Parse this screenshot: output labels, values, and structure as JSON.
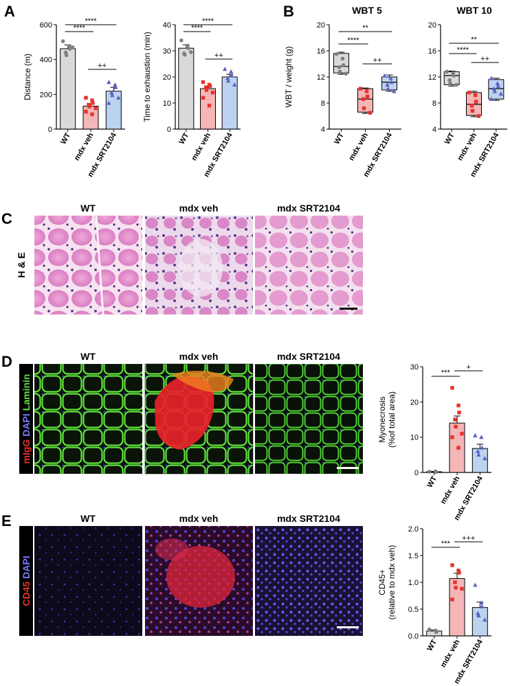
{
  "panels": {
    "A": "A",
    "B": "B",
    "C": "C",
    "D": "D",
    "E": "E"
  },
  "colors": {
    "wt_fill": "#d9d9d9",
    "wt_point": "#7f7f7f",
    "veh_fill": "#f4b6b6",
    "veh_point": "#e8322f",
    "srt_fill": "#bcd3f0",
    "srt_point": "#5a5fc4"
  },
  "micrographs": {
    "group_titles": [
      "WT",
      "mdx veh",
      "mdx SRT2104"
    ],
    "C_row_label": "H & E",
    "D_row_label": {
      "red": "mIgG",
      "blue": "DAPI",
      "green": "Laminin"
    },
    "E_row_label": {
      "red": "CD45",
      "blue": "DAPI"
    }
  },
  "chart_data": [
    {
      "id": "A1",
      "type": "bar",
      "categories": [
        "WT",
        "mdx veh",
        "mdx SRT2104"
      ],
      "values": [
        462,
        132,
        218
      ],
      "errors": [
        22,
        13,
        22
      ],
      "points": [
        [
          505,
          478,
          462,
          440,
          425,
          470
        ],
        [
          180,
          165,
          150,
          140,
          130,
          120,
          100,
          85
        ],
        [
          270,
          255,
          240,
          210,
          195,
          180,
          150
        ]
      ],
      "ylabel": "Distance (m)",
      "ylim": [
        0,
        600
      ],
      "yticks": [
        0,
        200,
        400,
        600
      ],
      "sig": [
        {
          "from": 0,
          "to": 1,
          "label": "****"
        },
        {
          "from": 0,
          "to": 2,
          "label": "****"
        },
        {
          "from": 1,
          "to": 2,
          "label": "++"
        }
      ]
    },
    {
      "id": "A2",
      "type": "bar",
      "categories": [
        "WT",
        "mdx veh",
        "mdx SRT2104"
      ],
      "values": [
        31,
        15.5,
        20
      ],
      "errors": [
        1.3,
        1.1,
        1.0
      ],
      "points": [
        [
          34,
          32,
          31,
          29,
          28.5,
          29.5
        ],
        [
          18,
          17,
          16.5,
          16,
          15,
          14,
          12,
          9
        ],
        [
          23,
          22,
          20.5,
          19.5,
          18.5,
          17
        ]
      ],
      "ylabel": "Time to exhaustion (min)",
      "ylim": [
        0,
        40
      ],
      "yticks": [
        0,
        10,
        20,
        30,
        40
      ],
      "sig": [
        {
          "from": 0,
          "to": 1,
          "label": "****"
        },
        {
          "from": 0,
          "to": 2,
          "label": "****"
        },
        {
          "from": 1,
          "to": 2,
          "label": "++"
        }
      ]
    },
    {
      "id": "B1",
      "type": "box",
      "title": "WBT 5",
      "categories": [
        "WT",
        "mdx veh",
        "mdx SRT2104"
      ],
      "boxes": [
        {
          "min": 12.4,
          "q1": 12.6,
          "med": 13.6,
          "q3": 15.6,
          "max": 15.8
        },
        {
          "min": 6.4,
          "q1": 6.6,
          "med": 8.6,
          "q3": 10.2,
          "max": 10.3
        },
        {
          "min": 9.8,
          "q1": 10.0,
          "med": 11.2,
          "q3": 12.0,
          "max": 12.3
        }
      ],
      "points": [
        [
          15.5,
          14.8,
          13.8,
          13.5,
          12.8,
          12.5
        ],
        [
          10.2,
          9.8,
          9.0,
          8.6,
          7.2,
          6.5
        ],
        [
          12.2,
          11.8,
          11.2,
          10.8,
          10.2,
          9.8
        ]
      ],
      "ylabel": "WBT / weight (g)",
      "ylim": [
        4,
        20
      ],
      "yticks": [
        4,
        8,
        12,
        16,
        20
      ],
      "sig": [
        {
          "from": 0,
          "to": 1,
          "label": "****"
        },
        {
          "from": 0,
          "to": 2,
          "label": "**"
        },
        {
          "from": 1,
          "to": 2,
          "label": "++"
        }
      ]
    },
    {
      "id": "B2",
      "type": "box",
      "title": "WBT 10",
      "categories": [
        "WT",
        "mdx veh",
        "mdx SRT2104"
      ],
      "boxes": [
        {
          "min": 10.6,
          "q1": 10.8,
          "med": 12.2,
          "q3": 12.8,
          "max": 12.9
        },
        {
          "min": 5.9,
          "q1": 6.1,
          "med": 7.8,
          "q3": 9.6,
          "max": 9.8
        },
        {
          "min": 8.4,
          "q1": 8.6,
          "med": 10.2,
          "q3": 11.6,
          "max": 11.8
        }
      ],
      "points": [
        [
          12.8,
          12.6,
          12.2,
          11.5,
          11.0,
          10.8
        ],
        [
          9.6,
          9.2,
          8.2,
          7.6,
          6.8,
          6.0
        ],
        [
          11.8,
          11.0,
          10.6,
          10.2,
          9.8,
          9.4,
          8.6
        ]
      ],
      "ylabel": "",
      "ylim": [
        4,
        20
      ],
      "yticks": [
        4,
        8,
        12,
        16,
        20
      ],
      "sig": [
        {
          "from": 0,
          "to": 1,
          "label": "****"
        },
        {
          "from": 0,
          "to": 2,
          "label": "**"
        },
        {
          "from": 1,
          "to": 2,
          "label": "++"
        }
      ]
    },
    {
      "id": "D",
      "type": "bar",
      "categories": [
        "WT",
        "mdx veh",
        "mdx SRT2104"
      ],
      "values": [
        0.2,
        14,
        6.8
      ],
      "errors": [
        0.1,
        2.0,
        1.2
      ],
      "points": [
        [
          0.2,
          0.3,
          0.1
        ],
        [
          24,
          19,
          17,
          15,
          13,
          11,
          10,
          7
        ],
        [
          10.5,
          10,
          7,
          6,
          5,
          4
        ]
      ],
      "ylabel": "Myonecrosis (%of total area)",
      "ylim": [
        0,
        30
      ],
      "yticks": [
        0,
        10,
        20,
        30
      ],
      "sig": [
        {
          "from": 0,
          "to": 1,
          "label": "***"
        },
        {
          "from": 1,
          "to": 2,
          "label": "+"
        }
      ]
    },
    {
      "id": "E",
      "type": "bar",
      "categories": [
        "WT",
        "mdx veh",
        "mdx SRT2104"
      ],
      "values": [
        0.09,
        1.07,
        0.53
      ],
      "errors": [
        0.02,
        0.1,
        0.1
      ],
      "points": [
        [
          0.12,
          0.1,
          0.07
        ],
        [
          1.32,
          1.22,
          1.18,
          1.0,
          0.9,
          0.88,
          0.68
        ],
        [
          0.95,
          0.62,
          0.55,
          0.42,
          0.38,
          0.3
        ]
      ],
      "ylabel": "CD45+ (relative to mdx veh)",
      "ylim": [
        0,
        2.0
      ],
      "yticks": [
        0.0,
        0.5,
        1.0,
        1.5,
        2.0
      ],
      "sig": [
        {
          "from": 0,
          "to": 1,
          "label": "***"
        },
        {
          "from": 1,
          "to": 2,
          "label": "+++"
        }
      ]
    }
  ]
}
